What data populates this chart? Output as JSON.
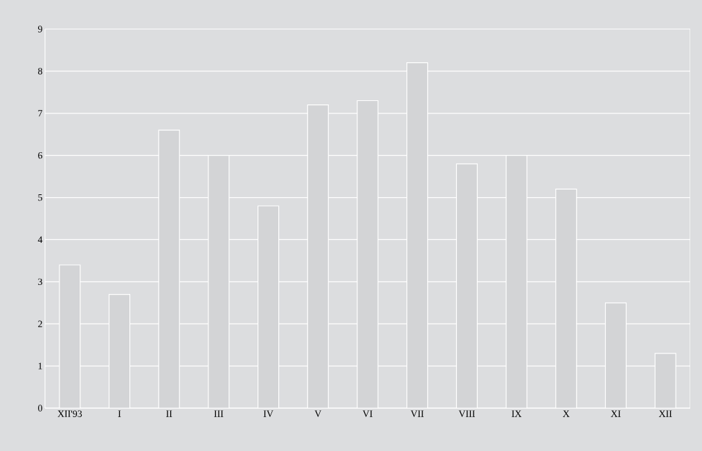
{
  "chart_data": {
    "type": "bar",
    "categories": [
      "XII'93",
      "I",
      "II",
      "III",
      "IV",
      "V",
      "VI",
      "VII",
      "VIII",
      "IX",
      "X",
      "XI",
      "XII"
    ],
    "values": [
      3.4,
      2.7,
      6.6,
      6.0,
      4.8,
      7.2,
      7.3,
      8.2,
      5.8,
      6.0,
      5.2,
      2.5,
      1.3
    ],
    "color": "#d3d4d6",
    "ylim": [
      0,
      9
    ],
    "yticks": [
      0,
      1,
      2,
      3,
      4,
      5,
      6,
      7,
      8,
      9
    ],
    "grid": "y"
  }
}
